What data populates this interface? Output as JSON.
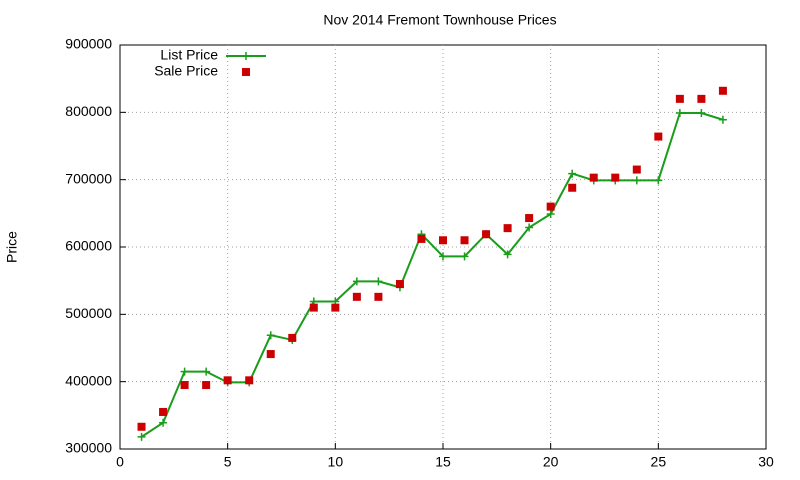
{
  "chart_data": {
    "type": "line",
    "title": "Nov 2014 Fremont Townhouse Prices",
    "y_label": "Price",
    "x": [
      1,
      2,
      3,
      4,
      5,
      6,
      7,
      8,
      9,
      10,
      11,
      12,
      13,
      14,
      15,
      16,
      17,
      18,
      19,
      20,
      21,
      22,
      23,
      24,
      25,
      26,
      27,
      28
    ],
    "series": [
      {
        "name": "List Price",
        "color": "#1a9d1a",
        "style": "linespoints",
        "values": [
          318000,
          339000,
          415000,
          415000,
          399000,
          399000,
          469000,
          462000,
          519000,
          519000,
          549000,
          549000,
          540000,
          619000,
          586000,
          586000,
          619000,
          589000,
          629000,
          649000,
          709000,
          699000,
          699000,
          699000,
          699000,
          799000,
          799000,
          789000
        ]
      },
      {
        "name": "Sale Price",
        "color": "#cc0000",
        "style": "points",
        "values": [
          333000,
          355000,
          395000,
          395000,
          402000,
          402000,
          441000,
          465000,
          510000,
          510000,
          526000,
          526000,
          545000,
          612000,
          610000,
          610000,
          619000,
          628000,
          643000,
          660000,
          688000,
          703000,
          703000,
          715000,
          764000,
          820000,
          820000,
          832000
        ]
      }
    ],
    "xlim": [
      0,
      30
    ],
    "xticks": [
      0,
      5,
      10,
      15,
      20,
      25,
      30
    ],
    "ylim": [
      300000,
      900000
    ],
    "yticks": [
      300000,
      400000,
      500000,
      600000,
      700000,
      800000,
      900000
    ],
    "grid": true,
    "legend": "top-left"
  }
}
